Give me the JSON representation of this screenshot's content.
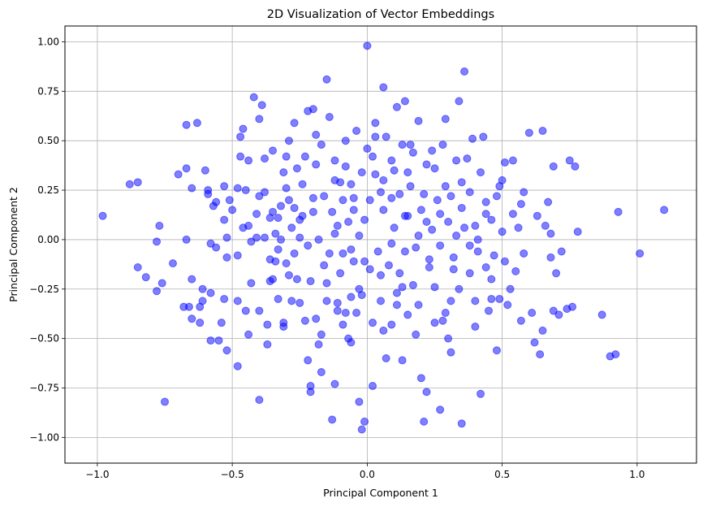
{
  "chart_data": {
    "type": "scatter",
    "title": "2D Visualization of Vector Embeddings",
    "xlabel": "Principal Component 1",
    "ylabel": "Principal Component 2",
    "xlim": [
      -1.12,
      1.22
    ],
    "ylim": [
      -1.13,
      1.08
    ],
    "xticks": [
      -1.0,
      -0.5,
      0.0,
      0.5,
      1.0
    ],
    "xtick_labels": [
      "−1.0",
      "−0.5",
      "0.0",
      "0.5",
      "1.0"
    ],
    "yticks": [
      -1.0,
      -0.75,
      -0.5,
      -0.25,
      0.0,
      0.25,
      0.5,
      0.75,
      1.0
    ],
    "ytick_labels": [
      "−1.00",
      "−0.75",
      "−0.50",
      "−0.25",
      "0.00",
      "0.25",
      "0.50",
      "0.75",
      "1.00"
    ],
    "grid": true,
    "marker_color": "#0000ff",
    "marker_alpha": 0.5,
    "points": [
      [
        -0.98,
        0.12
      ],
      [
        -0.88,
        0.28
      ],
      [
        -0.85,
        0.29
      ],
      [
        -0.85,
        -0.14
      ],
      [
        -0.82,
        -0.19
      ],
      [
        -0.78,
        -0.26
      ],
      [
        -0.76,
        -0.22
      ],
      [
        -0.77,
        0.07
      ],
      [
        -0.78,
        -0.01
      ],
      [
        -0.75,
        -0.82
      ],
      [
        -0.72,
        -0.12
      ],
      [
        -0.7,
        0.33
      ],
      [
        -0.67,
        0.36
      ],
      [
        -0.67,
        0.58
      ],
      [
        -0.67,
        0.0
      ],
      [
        -0.66,
        -0.34
      ],
      [
        -0.68,
        -0.34
      ],
      [
        -0.65,
        -0.2
      ],
      [
        -0.65,
        -0.4
      ],
      [
        -0.65,
        0.26
      ],
      [
        -0.63,
        0.59
      ],
      [
        -0.62,
        -0.42
      ],
      [
        -0.62,
        -0.34
      ],
      [
        -0.61,
        -0.31
      ],
      [
        -0.61,
        -0.25
      ],
      [
        -0.6,
        0.35
      ],
      [
        -0.59,
        0.25
      ],
      [
        -0.59,
        0.23
      ],
      [
        -0.58,
        -0.27
      ],
      [
        -0.58,
        -0.02
      ],
      [
        -0.57,
        0.17
      ],
      [
        -0.56,
        -0.04
      ],
      [
        -0.56,
        0.19
      ],
      [
        -0.55,
        -0.51
      ],
      [
        -0.54,
        -0.42
      ],
      [
        -0.53,
        0.1
      ],
      [
        -0.53,
        -0.3
      ],
      [
        -0.52,
        -0.56
      ],
      [
        -0.52,
        0.01
      ],
      [
        -0.52,
        -0.09
      ],
      [
        -0.51,
        0.2
      ],
      [
        -0.5,
        0.15
      ],
      [
        -0.48,
        -0.08
      ],
      [
        -0.48,
        0.26
      ],
      [
        -0.48,
        -0.64
      ],
      [
        -0.47,
        0.42
      ],
      [
        -0.47,
        0.52
      ],
      [
        -0.46,
        0.56
      ],
      [
        -0.45,
        -0.36
      ],
      [
        -0.44,
        -0.48
      ],
      [
        -0.45,
        0.25
      ],
      [
        -0.44,
        0.07
      ],
      [
        -0.43,
        -0.01
      ],
      [
        -0.42,
        0.72
      ],
      [
        -0.41,
        0.01
      ],
      [
        -0.4,
        0.22
      ],
      [
        -0.4,
        -0.36
      ],
      [
        -0.4,
        0.61
      ],
      [
        -0.4,
        -0.81
      ],
      [
        -0.39,
        0.68
      ],
      [
        -0.38,
        0.41
      ],
      [
        -0.38,
        0.24
      ],
      [
        -0.37,
        -0.53
      ],
      [
        -0.36,
        -0.1
      ],
      [
        -0.36,
        0.11
      ],
      [
        -0.35,
        0.14
      ],
      [
        -0.35,
        -0.2
      ],
      [
        -0.34,
        -0.11
      ],
      [
        -0.34,
        0.03
      ],
      [
        -0.33,
        -0.3
      ],
      [
        -0.33,
        0.11
      ],
      [
        -0.33,
        -0.05
      ],
      [
        -0.32,
        0.0
      ],
      [
        -0.31,
        0.34
      ],
      [
        -0.31,
        -0.44
      ],
      [
        -0.31,
        -0.42
      ],
      [
        -0.3,
        0.26
      ],
      [
        -0.3,
        -0.12
      ],
      [
        -0.29,
        0.5
      ],
      [
        -0.29,
        0.2
      ],
      [
        -0.28,
        0.06
      ],
      [
        -0.27,
        -0.07
      ],
      [
        -0.27,
        0.16
      ],
      [
        -0.26,
        -0.2
      ],
      [
        -0.26,
        0.36
      ],
      [
        -0.25,
        -0.32
      ],
      [
        -0.25,
        0.1
      ],
      [
        -0.24,
        0.28
      ],
      [
        -0.23,
        -0.41
      ],
      [
        -0.23,
        0.42
      ],
      [
        -0.22,
        -0.61
      ],
      [
        -0.22,
        0.65
      ],
      [
        -0.21,
        -0.77
      ],
      [
        -0.21,
        -0.74
      ],
      [
        -0.21,
        -0.21
      ],
      [
        -0.2,
        0.14
      ],
      [
        -0.2,
        0.66
      ],
      [
        -0.19,
        0.38
      ],
      [
        -0.19,
        -0.4
      ],
      [
        -0.18,
        -0.53
      ],
      [
        -0.18,
        0.0
      ],
      [
        -0.17,
        0.48
      ],
      [
        -0.17,
        -0.67
      ],
      [
        -0.16,
        -0.13
      ],
      [
        -0.16,
        0.22
      ],
      [
        -0.15,
        -0.31
      ],
      [
        -0.15,
        0.81
      ],
      [
        -0.14,
        0.62
      ],
      [
        -0.14,
        -0.07
      ],
      [
        -0.13,
        -0.91
      ],
      [
        -0.13,
        0.14
      ],
      [
        -0.12,
        -0.73
      ],
      [
        -0.12,
        0.4
      ],
      [
        -0.11,
        -0.32
      ],
      [
        -0.11,
        0.07
      ],
      [
        -0.1,
        0.29
      ],
      [
        -0.1,
        -0.17
      ],
      [
        -0.09,
        0.2
      ],
      [
        -0.09,
        -0.07
      ],
      [
        -0.08,
        -0.37
      ],
      [
        -0.08,
        0.37
      ],
      [
        -0.07,
        -0.5
      ],
      [
        -0.07,
        0.09
      ],
      [
        -0.06,
        -0.29
      ],
      [
        -0.06,
        0.28
      ],
      [
        -0.05,
        -0.11
      ],
      [
        -0.05,
        0.21
      ],
      [
        -0.04,
        0.55
      ],
      [
        -0.04,
        -0.37
      ],
      [
        -0.03,
        -0.82
      ],
      [
        -0.03,
        0.02
      ],
      [
        -0.03,
        -0.25
      ],
      [
        -0.02,
        -0.96
      ],
      [
        -0.02,
        0.34
      ],
      [
        -0.01,
        -0.11
      ],
      [
        -0.01,
        -0.92
      ],
      [
        -0.01,
        0.1
      ],
      [
        0.0,
        0.98
      ],
      [
        0.0,
        0.46
      ],
      [
        0.01,
        -0.15
      ],
      [
        0.01,
        0.2
      ],
      [
        0.02,
        -0.42
      ],
      [
        0.02,
        -0.74
      ],
      [
        0.03,
        0.59
      ],
      [
        0.03,
        0.33
      ],
      [
        0.04,
        -0.06
      ],
      [
        0.05,
        0.24
      ],
      [
        0.05,
        -0.31
      ],
      [
        0.06,
        0.77
      ],
      [
        0.06,
        0.15
      ],
      [
        0.07,
        0.52
      ],
      [
        0.07,
        -0.6
      ],
      [
        0.08,
        -0.13
      ],
      [
        0.09,
        0.4
      ],
      [
        0.09,
        -0.43
      ],
      [
        0.1,
        0.35
      ],
      [
        0.1,
        0.06
      ],
      [
        0.11,
        0.67
      ],
      [
        0.11,
        -0.27
      ],
      [
        0.12,
        -0.17
      ],
      [
        0.12,
        0.23
      ],
      [
        0.13,
        0.48
      ],
      [
        0.13,
        -0.61
      ],
      [
        0.14,
        0.7
      ],
      [
        0.14,
        -0.06
      ],
      [
        0.15,
        0.12
      ],
      [
        0.15,
        -0.38
      ],
      [
        0.16,
        0.27
      ],
      [
        0.17,
        -0.23
      ],
      [
        0.17,
        0.44
      ],
      [
        0.18,
        -0.04
      ],
      [
        0.19,
        0.6
      ],
      [
        0.19,
        -0.33
      ],
      [
        0.2,
        0.15
      ],
      [
        0.2,
        -0.7
      ],
      [
        0.21,
        0.23
      ],
      [
        0.21,
        -0.92
      ],
      [
        0.22,
        -0.77
      ],
      [
        0.22,
        0.38
      ],
      [
        0.23,
        -0.14
      ],
      [
        0.24,
        0.05
      ],
      [
        0.24,
        0.45
      ],
      [
        0.25,
        -0.42
      ],
      [
        0.25,
        -0.24
      ],
      [
        0.26,
        0.2
      ],
      [
        0.27,
        -0.03
      ],
      [
        0.27,
        -0.86
      ],
      [
        0.28,
        0.48
      ],
      [
        0.29,
        -0.37
      ],
      [
        0.29,
        0.61
      ],
      [
        0.3,
        0.09
      ],
      [
        0.3,
        -0.5
      ],
      [
        0.31,
        -0.57
      ],
      [
        0.31,
        0.22
      ],
      [
        0.32,
        -0.15
      ],
      [
        0.33,
        0.4
      ],
      [
        0.33,
        0.02
      ],
      [
        0.34,
        0.7
      ],
      [
        0.34,
        -0.25
      ],
      [
        0.35,
        0.29
      ],
      [
        0.35,
        -0.93
      ],
      [
        0.36,
        0.85
      ],
      [
        0.36,
        0.06
      ],
      [
        0.37,
        0.41
      ],
      [
        0.38,
        -0.17
      ],
      [
        0.38,
        0.24
      ],
      [
        0.39,
        0.51
      ],
      [
        0.4,
        0.07
      ],
      [
        0.4,
        -0.31
      ],
      [
        0.41,
        -0.06
      ],
      [
        0.42,
        0.34
      ],
      [
        0.42,
        -0.78
      ],
      [
        0.43,
        0.52
      ],
      [
        0.44,
        -0.14
      ],
      [
        0.44,
        0.19
      ],
      [
        0.45,
        -0.36
      ],
      [
        0.46,
        0.1
      ],
      [
        0.46,
        -0.3
      ],
      [
        0.47,
        -0.08
      ],
      [
        0.48,
        -0.56
      ],
      [
        0.48,
        0.22
      ],
      [
        0.49,
        -0.3
      ],
      [
        0.5,
        0.04
      ],
      [
        0.5,
        0.3
      ],
      [
        0.51,
        0.39
      ],
      [
        0.51,
        -0.11
      ],
      [
        0.52,
        -0.33
      ],
      [
        0.53,
        -0.25
      ],
      [
        0.54,
        0.13
      ],
      [
        0.54,
        0.4
      ],
      [
        0.55,
        -0.16
      ],
      [
        0.56,
        0.06
      ],
      [
        0.57,
        -0.41
      ],
      [
        0.58,
        0.24
      ],
      [
        0.58,
        -0.07
      ],
      [
        0.6,
        0.54
      ],
      [
        0.61,
        -0.37
      ],
      [
        0.62,
        -0.52
      ],
      [
        0.63,
        0.12
      ],
      [
        0.64,
        -0.58
      ],
      [
        0.65,
        0.55
      ],
      [
        0.65,
        -0.46
      ],
      [
        0.66,
        0.07
      ],
      [
        0.67,
        0.19
      ],
      [
        0.68,
        0.03
      ],
      [
        0.68,
        -0.09
      ],
      [
        0.69,
        0.37
      ],
      [
        0.69,
        -0.36
      ],
      [
        0.7,
        -0.17
      ],
      [
        0.71,
        -0.38
      ],
      [
        0.72,
        -0.06
      ],
      [
        0.74,
        -0.35
      ],
      [
        0.75,
        0.4
      ],
      [
        0.76,
        -0.34
      ],
      [
        0.77,
        0.37
      ],
      [
        0.78,
        0.04
      ],
      [
        0.87,
        -0.38
      ],
      [
        0.9,
        -0.59
      ],
      [
        0.92,
        -0.58
      ],
      [
        0.93,
        0.14
      ],
      [
        1.01,
        -0.07
      ],
      [
        1.1,
        0.15
      ],
      [
        -0.44,
        0.4
      ],
      [
        -0.35,
        0.45
      ],
      [
        -0.27,
        0.59
      ],
      [
        -0.19,
        0.53
      ],
      [
        -0.08,
        0.5
      ],
      [
        0.03,
        0.52
      ],
      [
        0.16,
        0.48
      ],
      [
        0.25,
        0.36
      ],
      [
        -0.58,
        -0.51
      ],
      [
        -0.48,
        -0.31
      ],
      [
        -0.37,
        -0.43
      ],
      [
        -0.28,
        -0.31
      ],
      [
        -0.17,
        -0.48
      ],
      [
        -0.06,
        -0.52
      ],
      [
        0.06,
        -0.46
      ],
      [
        0.18,
        -0.48
      ],
      [
        0.28,
        -0.41
      ],
      [
        0.4,
        -0.44
      ],
      [
        -0.46,
        0.06
      ],
      [
        -0.32,
        0.17
      ],
      [
        -0.22,
        -0.03
      ],
      [
        -0.12,
        0.03
      ],
      [
        0.09,
        -0.02
      ],
      [
        0.19,
        0.02
      ],
      [
        0.32,
        -0.09
      ],
      [
        -0.05,
        0.15
      ],
      [
        0.05,
        -0.18
      ],
      [
        -0.24,
        0.12
      ],
      [
        0.14,
        0.12
      ],
      [
        -0.36,
        -0.21
      ],
      [
        0.29,
        0.27
      ],
      [
        0.44,
        0.13
      ],
      [
        -0.15,
        -0.22
      ],
      [
        0.02,
        0.42
      ],
      [
        -0.09,
        -0.43
      ],
      [
        0.11,
        -0.33
      ],
      [
        0.38,
        -0.03
      ],
      [
        -0.41,
        0.13
      ],
      [
        0.57,
        0.18
      ],
      [
        -0.53,
        0.27
      ],
      [
        0.23,
        -0.1
      ],
      [
        -0.02,
        -0.28
      ],
      [
        0.46,
        -0.2
      ],
      [
        -0.3,
        0.42
      ],
      [
        0.15,
        0.34
      ],
      [
        -0.12,
        0.3
      ],
      [
        0.27,
        0.13
      ],
      [
        -0.2,
        0.21
      ],
      [
        0.35,
        0.16
      ],
      [
        -0.43,
        -0.22
      ],
      [
        0.49,
        0.27
      ],
      [
        -0.25,
        0.01
      ],
      [
        0.06,
        0.3
      ],
      [
        -0.06,
        -0.05
      ],
      [
        0.13,
        -0.24
      ],
      [
        0.22,
        0.09
      ],
      [
        -0.38,
        0.01
      ],
      [
        0.41,
        0.0
      ],
      [
        -0.11,
        -0.36
      ],
      [
        0.09,
        0.21
      ],
      [
        -0.29,
        -0.18
      ],
      [
        0.31,
        -0.31
      ]
    ]
  }
}
